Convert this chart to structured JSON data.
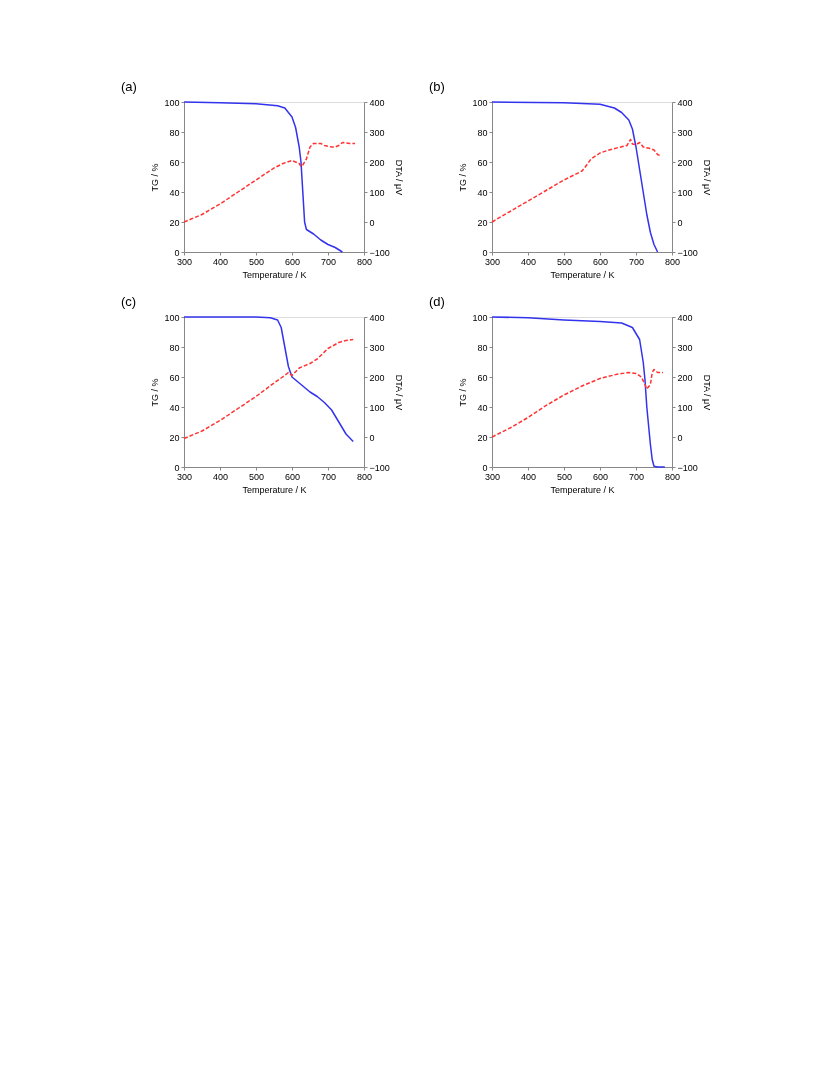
{
  "chart_data": [
    {
      "type": "line",
      "title": "(a)",
      "xlabel": "Temperature / K",
      "ylabel": "TG / %",
      "y2label": "DTA / μV",
      "xlim": [
        300,
        800
      ],
      "xticks": [
        300,
        400,
        500,
        600,
        700,
        800
      ],
      "ylim": [
        0,
        100
      ],
      "yticks": [
        0,
        20,
        40,
        60,
        80,
        100
      ],
      "y2lim": [
        -100,
        400
      ],
      "y2ticks": [
        -100,
        0,
        100,
        200,
        300,
        400
      ],
      "line_style": "solid",
      "series": [
        {
          "color": "#3333ee",
          "x": [
            300,
            400,
            500,
            560,
            580,
            600,
            610,
            620,
            625,
            630,
            635,
            640,
            660,
            680,
            700,
            720,
            740
          ],
          "values": [
            100,
            99.5,
            98.8,
            97.5,
            96,
            90,
            83,
            70,
            60,
            40,
            20,
            15,
            12,
            8,
            5,
            3,
            0
          ]
        },
        {
          "color": "#ff3333",
          "axis": "y2",
          "line_style": "dashed",
          "x": [
            300,
            350,
            400,
            450,
            500,
            550,
            575,
            600,
            610,
            620,
            625,
            630,
            640,
            650,
            660,
            680,
            690,
            710,
            720,
            730,
            740,
            760,
            775
          ],
          "values": [
            0,
            25,
            60,
            100,
            140,
            180,
            195,
            205,
            200,
            195,
            185,
            190,
            210,
            250,
            262,
            262,
            255,
            250,
            250,
            255,
            265,
            262,
            262
          ]
        }
      ]
    },
    {
      "type": "line",
      "title": "(b)",
      "xlabel": "Temperature / K",
      "ylabel": "TG / %",
      "y2label": "DTA / μV",
      "xlim": [
        300,
        800
      ],
      "xticks": [
        300,
        400,
        500,
        600,
        700,
        800
      ],
      "ylim": [
        0,
        100
      ],
      "yticks": [
        0,
        20,
        40,
        60,
        80,
        100
      ],
      "y2lim": [
        -100,
        400
      ],
      "y2ticks": [
        -100,
        0,
        100,
        200,
        300,
        400
      ],
      "line_style": "solid",
      "series": [
        {
          "color": "#3333ee",
          "x": [
            300,
            500,
            600,
            640,
            660,
            680,
            690,
            700,
            710,
            720,
            730,
            740,
            750,
            760
          ],
          "values": [
            100,
            99.5,
            98.5,
            96,
            93,
            88,
            82,
            70,
            55,
            40,
            25,
            13,
            5,
            0
          ]
        },
        {
          "color": "#ff3333",
          "axis": "y2",
          "line_style": "dashed",
          "x": [
            300,
            350,
            400,
            450,
            500,
            550,
            560,
            575,
            600,
            625,
            650,
            675,
            685,
            690,
            700,
            710,
            720,
            740,
            750,
            760,
            770
          ],
          "values": [
            0,
            35,
            70,
            105,
            140,
            170,
            185,
            210,
            230,
            240,
            248,
            255,
            275,
            260,
            258,
            265,
            250,
            245,
            240,
            225,
            220
          ]
        }
      ]
    },
    {
      "type": "line",
      "title": "(c)",
      "xlabel": "Temperature / K",
      "ylabel": "TG / %",
      "y2label": "DTA / μV",
      "xlim": [
        300,
        800
      ],
      "xticks": [
        300,
        400,
        500,
        600,
        700,
        800
      ],
      "ylim": [
        0,
        100
      ],
      "yticks": [
        0,
        20,
        40,
        60,
        80,
        100
      ],
      "y2lim": [
        -100,
        400
      ],
      "y2ticks": [
        -100,
        0,
        100,
        200,
        300,
        400
      ],
      "line_style": "solid",
      "series": [
        {
          "color": "#3333ee",
          "x": [
            300,
            500,
            540,
            560,
            570,
            580,
            590,
            600,
            620,
            650,
            670,
            690,
            710,
            730,
            750,
            770
          ],
          "values": [
            100,
            100,
            99.5,
            98,
            93,
            80,
            67,
            60,
            56,
            50,
            47,
            43,
            38,
            30,
            22,
            17
          ]
        },
        {
          "color": "#ff3333",
          "axis": "y2",
          "line_style": "dashed",
          "x": [
            300,
            350,
            400,
            450,
            500,
            550,
            580,
            590,
            600,
            620,
            650,
            670,
            700,
            730,
            750,
            770
          ],
          "values": [
            -5,
            20,
            55,
            95,
            135,
            180,
            205,
            215,
            205,
            230,
            245,
            260,
            295,
            315,
            322,
            325
          ]
        }
      ]
    },
    {
      "type": "line",
      "title": "(d)",
      "xlabel": "Temperature / K",
      "ylabel": "TG / %",
      "y2label": "DTA / μV",
      "xlim": [
        300,
        800
      ],
      "xticks": [
        300,
        400,
        500,
        600,
        700,
        800
      ],
      "ylim": [
        0,
        100
      ],
      "yticks": [
        0,
        20,
        40,
        60,
        80,
        100
      ],
      "y2lim": [
        -100,
        400
      ],
      "y2ticks": [
        -100,
        0,
        100,
        200,
        300,
        400
      ],
      "line_style": "solid",
      "series": [
        {
          "color": "#3333ee",
          "x": [
            300,
            400,
            500,
            600,
            660,
            690,
            710,
            720,
            725,
            730,
            740,
            745,
            750,
            760,
            780
          ],
          "values": [
            100,
            99.5,
            98,
            97,
            96,
            93,
            85,
            70,
            58,
            40,
            15,
            5,
            0.5,
            0,
            0
          ]
        },
        {
          "color": "#ff3333",
          "axis": "y2",
          "line_style": "dashed",
          "x": [
            300,
            350,
            400,
            450,
            500,
            550,
            600,
            650,
            680,
            700,
            715,
            725,
            730,
            740,
            745,
            750,
            760,
            775
          ],
          "values": [
            0,
            30,
            65,
            105,
            140,
            170,
            195,
            210,
            215,
            212,
            200,
            175,
            160,
            175,
            215,
            225,
            215,
            215
          ]
        }
      ]
    }
  ]
}
